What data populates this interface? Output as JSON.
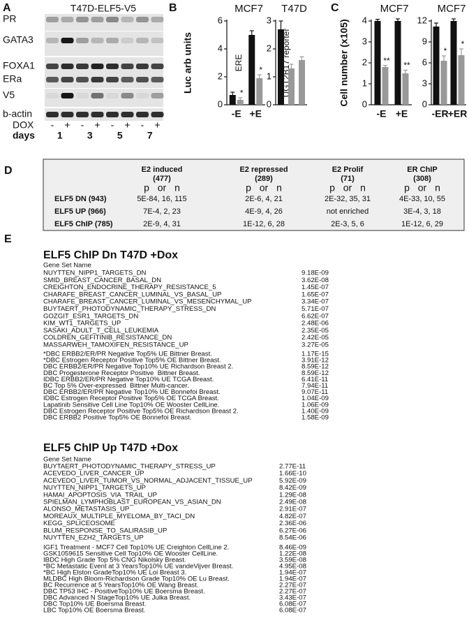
{
  "panel_labels": [
    "A",
    "B",
    "C",
    "D",
    "E"
  ],
  "blot": {
    "title": "T47D-ELF5-V5",
    "rows": [
      "PR",
      "GATA3",
      "FOXA1",
      "ERa",
      "V5",
      "b-actin"
    ],
    "dox_label": "DOX",
    "dox": [
      "-",
      "+",
      "-",
      "+",
      "-",
      "+",
      "-",
      "+"
    ],
    "days_label": "days",
    "days": [
      "1",
      "3",
      "5",
      "7"
    ]
  },
  "chart_data": [
    {
      "type": "bar",
      "title": "MCF7",
      "y_label": "Luc arb units",
      "annotation": "ERE",
      "categories": [
        "-E",
        "+E"
      ],
      "series": [
        {
          "color": "#111111",
          "values": [
            0.7,
            5.0
          ],
          "errors": [
            0.2,
            0.3
          ]
        },
        {
          "color": "#999999",
          "values": [
            0.35,
            1.9
          ],
          "errors": [
            0.15,
            0.25
          ],
          "significance": [
            "*",
            "*"
          ]
        }
      ],
      "ylim": [
        0,
        6
      ],
      "yticks": [
        0,
        2,
        4,
        6
      ]
    },
    {
      "type": "bar",
      "title": "T47D",
      "annotation": "UGT2B17 reporter",
      "categories": [
        null,
        null,
        null
      ],
      "values": [
        2.7,
        1.3,
        1.6
      ],
      "errors": [
        0.3,
        0.15,
        0.12
      ],
      "colors": [
        "#111111",
        "#999999",
        "#999999"
      ],
      "ylim": [
        0,
        3
      ],
      "yticks": [
        0,
        1,
        2,
        3
      ]
    },
    {
      "type": "bar",
      "title": "MCF7",
      "y_label": "Cell number (x105)",
      "categories": [
        "-E",
        "+E"
      ],
      "series": [
        {
          "color": "#111111",
          "values": [
            4.0,
            4.0
          ],
          "errors": [
            0.08,
            0.1
          ]
        },
        {
          "color": "#999999",
          "values": [
            1.8,
            1.5
          ],
          "errors": [
            0.08,
            0.15
          ],
          "significance": [
            "**",
            "**"
          ]
        }
      ],
      "ylim": [
        0,
        4
      ],
      "yticks": [
        0,
        1,
        2,
        3,
        4
      ]
    },
    {
      "type": "bar",
      "title": "MCF7",
      "categories": [
        "-ER",
        "+ER"
      ],
      "series": [
        {
          "color": "#111111",
          "values": [
            11.2,
            12.0
          ],
          "errors": [
            0.5,
            0.3
          ]
        },
        {
          "color": "#999999",
          "values": [
            6.3,
            7.1
          ],
          "errors": [
            0.7,
            0.9
          ],
          "significance": [
            "*",
            "*"
          ]
        }
      ],
      "ylim": [
        0,
        12
      ],
      "yticks": [
        0,
        3,
        6,
        9,
        12
      ]
    }
  ],
  "table": {
    "columns": [
      {
        "title": "E2 induced",
        "count": "(477)"
      },
      {
        "title": "E2 repressed",
        "count": "(289)"
      },
      {
        "title": "E2 Prolif",
        "count": "(71)"
      },
      {
        "title": "ER ChIP",
        "count": "(308)"
      }
    ],
    "stat_labels": [
      "p",
      "or",
      "n"
    ],
    "rows": [
      {
        "name": "ELF5 DN (943)",
        "cells": [
          "5E-84, 16, 115",
          "2E-6, 4, 21",
          "2E-32, 35, 31",
          "4E-33, 10, 55"
        ]
      },
      {
        "name": "ELF5 UP (966)",
        "cells": [
          "7E-4, 2, 23",
          "4E-9, 4, 26",
          "not enriched",
          "3E-4, 3, 18"
        ]
      },
      {
        "name": "ELF5 ChIP (785)",
        "cells": [
          "2E-9, 4, 31",
          "1E-12, 6, 28",
          "2E-3, 5, 6",
          "1E-12, 6, 29"
        ]
      }
    ]
  },
  "gene_sets": [
    {
      "title": "ELF5 ChIP Dn T47D +Dox",
      "column_header": "Gene Set Name",
      "groups": [
        [
          [
            "NUYTTEN_NIPP1_TARGETS_DN",
            "9.18E-09"
          ],
          [
            "SMID_BREAST_CANCER_BASAL_DN",
            "3.62E-08"
          ],
          [
            "CREIGHTON_ENDOCRINE_THERAPY_RESISTANCE_5",
            "1.45E-07"
          ],
          [
            "CHARAFE_BREAST_CANCER_LUMINAL_VS_BASAL_UP",
            "1.65E-07"
          ],
          [
            "CHARAFE_BREAST_CANCER_LUMINAL_VS_MESENCHYMAL_UP",
            "3.34E-07"
          ],
          [
            "BUYTAERT_PHOTODYNAMIC_THERAPY_STRESS_DN",
            "5.71E-07"
          ],
          [
            "GOZGIT_ESR1_TARGETS_DN",
            "6.62E-07"
          ],
          [
            "KIM_WT1_TARGETS_UP",
            "2.48E-06"
          ],
          [
            "SASAKI_ADULT_T_CELL_LEUKEMIA",
            "2.35E-05"
          ],
          [
            "COLDREN_GEFITINIB_RESISTANCE_DN",
            "2.42E-05"
          ],
          [
            "MASSARWEH_TAMOXIFEN_RESISTANCE_UP",
            "3.27E-05"
          ]
        ],
        [
          [
            "*DBC ERBB2/ER/PR Negative Top5% UE Bittner Breast.",
            "1.17E-15"
          ],
          [
            "*DBC Estrogen Receptor Positive Top5% OE Bittner Breast.",
            "3.91E-12"
          ],
          [
            "DBC ERBB2/ER/PR Negative Top10% UE Richardson Breast 2.",
            "8.59E-12"
          ],
          [
            "DBC Progesterone Receptor Positive  Bittner Breast.",
            "8.59E-12"
          ],
          [
            "IDBC ERBB2/ER/PR Negative Top10% UE TCGA Breast.",
            "6.41E-11"
          ],
          [
            "BC Top 5% Over-expressed  Bittner Multi-cancer.",
            "7.94E-11"
          ],
          [
            "DBC ERBB2/ER/PR Negative Top10% UE Bonnefoi Breast.",
            "9.07E-11"
          ],
          [
            "IDBC Estrogen Receptor Positive Top5% OE TCGA Breast.",
            "1.04E-09"
          ],
          [
            "Lapatinib Sensitive Cell Line Top10% OE Wooster CellLine.",
            "1.06E-09"
          ],
          [
            "DBC Estrogen Receptor Positive Top5% OE Richardson Breast 2.",
            "1.40E-09"
          ],
          [
            "DBC ERBB2 Positive Top5% OE Bonnefoi Breast.",
            "1.58E-09"
          ]
        ]
      ]
    },
    {
      "title": "ELF5 ChIP Up T47D +Dox",
      "column_header": "Gene Set Name",
      "groups": [
        [
          [
            "BUYTAERT_PHOTODYNAMIC_THERAPY_STRESS_UP",
            "2.77E-11"
          ],
          [
            "ACEVEDO_LIVER_CANCER_UP",
            "1.66E-10"
          ],
          [
            "ACEVEDO_LIVER_TUMOR_VS_NORMAL_ADJACENT_TISSUE_UP",
            "5.92E-09"
          ],
          [
            "NUYTTEN_NIPP1_TARGETS_UP",
            "8.42E-09"
          ],
          [
            "HAMAI_APOPTOSIS_VIA_TRAIL_UP",
            "1.29E-08"
          ],
          [
            "SPIELMAN_LYMPHOBLAST_EUROPEAN_VS_ASIAN_DN",
            "2.49E-08"
          ],
          [
            "ALONSO_METASTASIS_UP",
            "2.91E-07"
          ],
          [
            "MOREAUX_MULTIPLE_MYELOMA_BY_TACI_DN",
            "4.82E-07"
          ],
          [
            "KEGG_SPLICEOSOME",
            "2.36E-06"
          ],
          [
            "BLUM_RESPONSE_TO_SALIRASIB_UP",
            "6.27E-06"
          ],
          [
            "NUYTTEN_EZH2_TARGETS_UP",
            "8.54E-06"
          ]
        ],
        [
          [
            "IGF1 Treatment - MCF7 Cell Top10% UE Creighton CellLine 2.",
            "8.46E-09"
          ],
          [
            "GSK1059615 Sensitive Cell Top10% OE Wooster CellLine.",
            "1.22E-08"
          ],
          [
            "IBDC High Grade Top 5% CNG Nikolsky Breast.",
            "3.59E-08"
          ],
          [
            "*BC Metastatic Event at 3 YearsTop10% UE vandeVijver Breast.",
            "4.95E-08"
          ],
          [
            "*BC High Elston GradeTop10% UE Loi Breast 3.",
            "1.94E-07"
          ],
          [
            "MLDBC High Bloom-Richardson Grade Top10% OE Lu Breast.",
            "1.94E-07"
          ],
          [
            "BC Recurrence at 5 YearsTop10% OE Wang Breast.",
            "2.27E-07"
          ],
          [
            "DBC TP53 IHC - PositiveTop10% UE Boersma Breast.",
            "2.27E-07"
          ],
          [
            "DBC Advanced N StageTop10% UE Julka Breast.",
            "3.43E-07"
          ],
          [
            "DBC Top10% UE Boersma Breast.",
            "6.08E-07"
          ],
          [
            "LBC Top10% OE Boersma Breast.",
            "6.08E-07"
          ]
        ]
      ]
    }
  ]
}
